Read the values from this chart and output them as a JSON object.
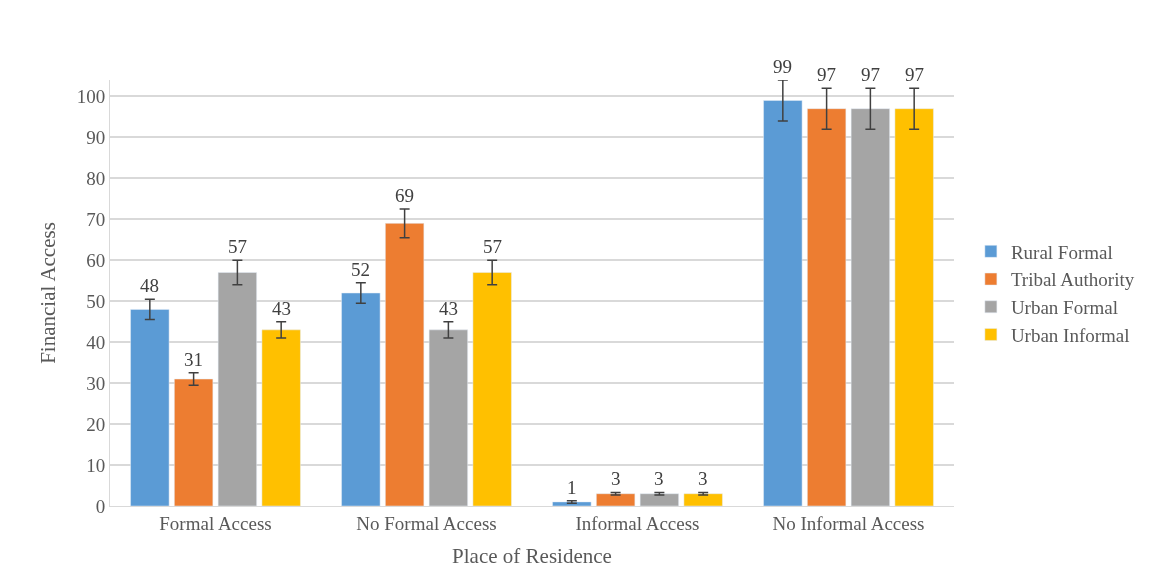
{
  "chart_data": {
    "type": "bar",
    "xlabel": "Place of Residence",
    "ylabel": "Financial Access",
    "categories": [
      "Formal Access",
      "No Formal Access",
      "Informal Access",
      "No Informal Access"
    ],
    "series": [
      {
        "name": "Rural Formal",
        "color": "#5b9bd5",
        "values": [
          48,
          52,
          1,
          99
        ],
        "errors": [
          2.5,
          2.5,
          0.3,
          5
        ]
      },
      {
        "name": "Tribal Authority",
        "color": "#ed7d31",
        "values": [
          31,
          69,
          3,
          97
        ],
        "errors": [
          1.5,
          3.5,
          0.3,
          5
        ]
      },
      {
        "name": "Urban Formal",
        "color": "#a5a5a5",
        "values": [
          57,
          43,
          3,
          97
        ],
        "errors": [
          3,
          2,
          0.3,
          5
        ]
      },
      {
        "name": "Urban Informal",
        "color": "#ffc000",
        "values": [
          43,
          57,
          3,
          97
        ],
        "errors": [
          2,
          3,
          0.3,
          5
        ]
      }
    ],
    "ylim": [
      0,
      104
    ],
    "yticks": [
      0,
      10,
      20,
      30,
      40,
      50,
      60,
      70,
      80,
      90,
      100
    ],
    "grid": "y",
    "legend": "right",
    "data_labels": true
  }
}
